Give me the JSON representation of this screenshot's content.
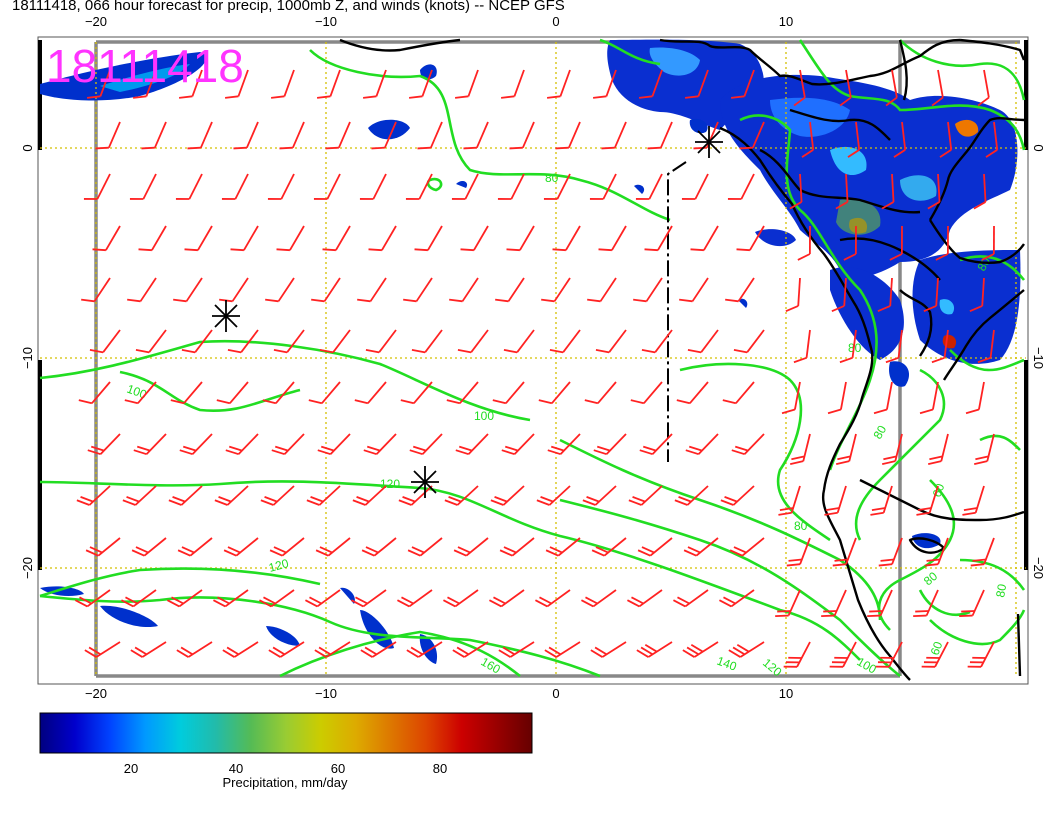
{
  "title": "18111418, 066 hour forecast for precip, 1000mb Z, and winds (knots) -- NCEP GFS",
  "stamp": "18111418",
  "colors": {
    "stamp": "#ff33ff",
    "contour": "#22dd22",
    "barb": "#ff2222",
    "grid": "#d4c000",
    "coast": "#000000",
    "frame": "#888888"
  },
  "axes": {
    "top_ticks": [
      "−20",
      "−10",
      "0",
      "10"
    ],
    "bottom_ticks": [
      "−20",
      "−10",
      "0",
      "10"
    ],
    "left_ticks": [
      "0",
      "−10",
      "−20"
    ],
    "right_ticks": [
      "0",
      "−10",
      "−20"
    ]
  },
  "contour_labels": [
    {
      "text": "80"
    },
    {
      "text": "100"
    },
    {
      "text": "100"
    },
    {
      "text": "120"
    },
    {
      "text": "120"
    },
    {
      "text": "120"
    },
    {
      "text": "140"
    },
    {
      "text": "160"
    },
    {
      "text": "80"
    },
    {
      "text": "80"
    },
    {
      "text": "60"
    },
    {
      "text": "80"
    },
    {
      "text": "60"
    },
    {
      "text": "80"
    },
    {
      "text": "100"
    },
    {
      "text": "80"
    },
    {
      "text": "80"
    }
  ],
  "colorbar": {
    "ticks": [
      "20",
      "40",
      "60",
      "80"
    ],
    "label": "Precipitation, mm/day",
    "colors": [
      "#000080",
      "#0000cc",
      "#0044ff",
      "#0099ff",
      "#00ccdd",
      "#22bbaa",
      "#55bb55",
      "#99cc33",
      "#cccc00",
      "#ddaa00",
      "#dd7700",
      "#dd4400",
      "#cc0000",
      "#990000",
      "#660000"
    ]
  }
}
